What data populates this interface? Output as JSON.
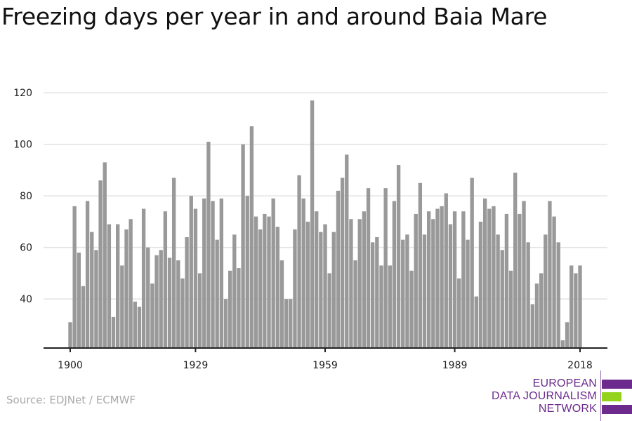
{
  "title": "Freezing days per year in and around Baia Mare",
  "source": "Source: EDJNet / ECMWF",
  "logo": {
    "lines": [
      "EUROPEAN",
      "DATA JOURNALISM",
      "NETWORK"
    ],
    "colors": {
      "purple": "#6b2a8c",
      "green": "#93d31c"
    }
  },
  "chart_data": {
    "type": "bar",
    "title": "Freezing days per year in and around Baia Mare",
    "xlabel": "",
    "ylabel": "",
    "x_start": 1900,
    "x_end": 2018,
    "x_ticks": [
      "1900",
      "1929",
      "1959",
      "1989",
      "2018"
    ],
    "y_ticks": [
      "40",
      "60",
      "80",
      "100",
      "120"
    ],
    "ylim": [
      21,
      123
    ],
    "grid": true,
    "bar_color": "#999999",
    "values": [
      31,
      76,
      58,
      45,
      78,
      66,
      59,
      86,
      93,
      69,
      33,
      69,
      53,
      67,
      71,
      39,
      37,
      75,
      60,
      46,
      57,
      59,
      74,
      56,
      87,
      55,
      48,
      64,
      80,
      75,
      50,
      79,
      101,
      78,
      63,
      79,
      40,
      51,
      65,
      52,
      100,
      80,
      107,
      72,
      67,
      73,
      72,
      79,
      68,
      55,
      40,
      40,
      67,
      88,
      79,
      70,
      117,
      74,
      66,
      69,
      50,
      66,
      82,
      87,
      96,
      71,
      55,
      71,
      74,
      83,
      62,
      64,
      53,
      83,
      53,
      78,
      92,
      63,
      65,
      51,
      73,
      85,
      65,
      74,
      71,
      75,
      76,
      81,
      69,
      74,
      48,
      74,
      63,
      87,
      41,
      70,
      79,
      75,
      76,
      65,
      59,
      73,
      51,
      89,
      73,
      78,
      62,
      38,
      46,
      50,
      65,
      78,
      72,
      62,
      24,
      31,
      53,
      50,
      53
    ]
  }
}
